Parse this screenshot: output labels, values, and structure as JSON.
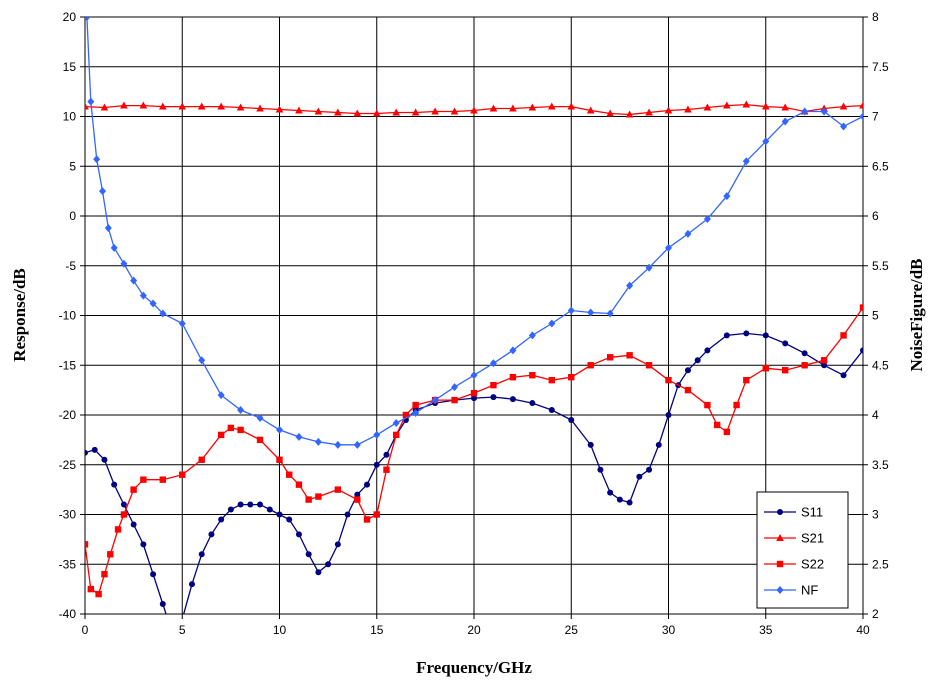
{
  "chart_data": {
    "type": "line",
    "xlabel": "Frequency/GHz",
    "ylabel_left": "Response/dB",
    "ylabel_right": "NoiseFigure/dB",
    "xlim": [
      0,
      40
    ],
    "ylim_left": [
      -40,
      20
    ],
    "ylim_right": [
      2,
      8
    ],
    "x_ticks": [
      "0",
      "5",
      "10",
      "15",
      "20",
      "25",
      "30",
      "35",
      "40"
    ],
    "y_ticks_left": [
      "-40",
      "-35",
      "-30",
      "-25",
      "-20",
      "-15",
      "-10",
      "-5",
      "0",
      "5",
      "10",
      "15",
      "20"
    ],
    "y_ticks_right": [
      "2",
      "2.5",
      "3",
      "3.5",
      "4",
      "4.5",
      "5",
      "5.5",
      "6",
      "6.5",
      "7",
      "7.5",
      "8"
    ],
    "grid": true,
    "legend_position": "bottom-right",
    "series": [
      {
        "name": "S11",
        "axis": "left",
        "color": "#000080",
        "marker": "circle",
        "points": [
          [
            0,
            -23.8
          ],
          [
            0.5,
            -23.5
          ],
          [
            1,
            -24.5
          ],
          [
            1.5,
            -27
          ],
          [
            2,
            -29
          ],
          [
            2.5,
            -31
          ],
          [
            3,
            -33
          ],
          [
            3.5,
            -36
          ],
          [
            4,
            -39
          ],
          [
            4.5,
            -42
          ],
          [
            5,
            -40.5
          ],
          [
            5.5,
            -37
          ],
          [
            6,
            -34
          ],
          [
            6.5,
            -32
          ],
          [
            7,
            -30.5
          ],
          [
            7.5,
            -29.5
          ],
          [
            8,
            -29
          ],
          [
            8.5,
            -29
          ],
          [
            9,
            -29
          ],
          [
            9.5,
            -29.5
          ],
          [
            10,
            -30
          ],
          [
            10.5,
            -30.5
          ],
          [
            11,
            -32
          ],
          [
            11.5,
            -34
          ],
          [
            12,
            -35.8
          ],
          [
            12.5,
            -35
          ],
          [
            13,
            -33
          ],
          [
            13.5,
            -30
          ],
          [
            14,
            -28
          ],
          [
            14.5,
            -27
          ],
          [
            15,
            -25
          ],
          [
            15.5,
            -24
          ],
          [
            16,
            -22
          ],
          [
            16.5,
            -20.5
          ],
          [
            17,
            -19.5
          ],
          [
            18,
            -18.8
          ],
          [
            19,
            -18.5
          ],
          [
            20,
            -18.3
          ],
          [
            21,
            -18.2
          ],
          [
            22,
            -18.4
          ],
          [
            23,
            -18.8
          ],
          [
            24,
            -19.5
          ],
          [
            25,
            -20.5
          ],
          [
            26,
            -23
          ],
          [
            26.5,
            -25.5
          ],
          [
            27,
            -27.8
          ],
          [
            27.5,
            -28.5
          ],
          [
            28,
            -28.8
          ],
          [
            28.5,
            -26.2
          ],
          [
            29,
            -25.5
          ],
          [
            29.5,
            -23
          ],
          [
            30,
            -20
          ],
          [
            30.5,
            -17
          ],
          [
            31,
            -15.5
          ],
          [
            31.5,
            -14.5
          ],
          [
            32,
            -13.5
          ],
          [
            33,
            -12
          ],
          [
            34,
            -11.8
          ],
          [
            35,
            -12
          ],
          [
            36,
            -12.8
          ],
          [
            37,
            -13.8
          ],
          [
            38,
            -15
          ],
          [
            39,
            -16
          ],
          [
            40,
            -13.5
          ]
        ]
      },
      {
        "name": "S21",
        "axis": "left",
        "color": "#ff0000",
        "marker": "triangle",
        "points": [
          [
            0,
            11
          ],
          [
            1,
            10.9
          ],
          [
            2,
            11.1
          ],
          [
            3,
            11.1
          ],
          [
            4,
            11
          ],
          [
            5,
            11
          ],
          [
            6,
            11
          ],
          [
            7,
            11
          ],
          [
            8,
            10.9
          ],
          [
            9,
            10.8
          ],
          [
            10,
            10.7
          ],
          [
            11,
            10.6
          ],
          [
            12,
            10.5
          ],
          [
            13,
            10.4
          ],
          [
            14,
            10.3
          ],
          [
            15,
            10.3
          ],
          [
            16,
            10.4
          ],
          [
            17,
            10.4
          ],
          [
            18,
            10.5
          ],
          [
            19,
            10.5
          ],
          [
            20,
            10.6
          ],
          [
            21,
            10.8
          ],
          [
            22,
            10.8
          ],
          [
            23,
            10.9
          ],
          [
            24,
            11
          ],
          [
            25,
            11
          ],
          [
            26,
            10.6
          ],
          [
            27,
            10.3
          ],
          [
            28,
            10.2
          ],
          [
            29,
            10.4
          ],
          [
            30,
            10.6
          ],
          [
            31,
            10.7
          ],
          [
            32,
            10.9
          ],
          [
            33,
            11.1
          ],
          [
            34,
            11.2
          ],
          [
            35,
            11
          ],
          [
            36,
            10.9
          ],
          [
            37,
            10.5
          ],
          [
            38,
            10.8
          ],
          [
            39,
            11
          ],
          [
            40,
            11.1
          ]
        ]
      },
      {
        "name": "S22",
        "axis": "left",
        "color": "#ff0000",
        "marker": "square",
        "points": [
          [
            0,
            -33
          ],
          [
            0.3,
            -37.5
          ],
          [
            0.7,
            -38
          ],
          [
            1,
            -36
          ],
          [
            1.3,
            -34
          ],
          [
            1.7,
            -31.5
          ],
          [
            2,
            -30
          ],
          [
            2.5,
            -27.5
          ],
          [
            3,
            -26.5
          ],
          [
            4,
            -26.5
          ],
          [
            5,
            -26
          ],
          [
            6,
            -24.5
          ],
          [
            7,
            -22
          ],
          [
            7.5,
            -21.3
          ],
          [
            8,
            -21.5
          ],
          [
            9,
            -22.5
          ],
          [
            10,
            -24.5
          ],
          [
            10.5,
            -26
          ],
          [
            11,
            -27
          ],
          [
            11.5,
            -28.5
          ],
          [
            12,
            -28.2
          ],
          [
            13,
            -27.5
          ],
          [
            14,
            -28.5
          ],
          [
            14.5,
            -30.5
          ],
          [
            15,
            -30
          ],
          [
            15.5,
            -25.5
          ],
          [
            16,
            -22
          ],
          [
            16.5,
            -20
          ],
          [
            17,
            -19
          ],
          [
            18,
            -18.5
          ],
          [
            19,
            -18.5
          ],
          [
            20,
            -17.8
          ],
          [
            21,
            -17
          ],
          [
            22,
            -16.2
          ],
          [
            23,
            -16
          ],
          [
            24,
            -16.5
          ],
          [
            25,
            -16.2
          ],
          [
            26,
            -15
          ],
          [
            27,
            -14.2
          ],
          [
            28,
            -14
          ],
          [
            29,
            -15
          ],
          [
            30,
            -16.5
          ],
          [
            31,
            -17.5
          ],
          [
            32,
            -19
          ],
          [
            32.5,
            -21
          ],
          [
            33,
            -21.7
          ],
          [
            33.5,
            -19
          ],
          [
            34,
            -16.5
          ],
          [
            35,
            -15.3
          ],
          [
            36,
            -15.5
          ],
          [
            37,
            -15
          ],
          [
            38,
            -14.5
          ],
          [
            39,
            -12
          ],
          [
            40,
            -9.2
          ]
        ]
      },
      {
        "name": "NF",
        "axis": "right",
        "color": "#3366ff",
        "marker": "diamond",
        "points": [
          [
            0.1,
            8.0
          ],
          [
            0.3,
            7.15
          ],
          [
            0.6,
            6.57
          ],
          [
            0.9,
            6.25
          ],
          [
            1.2,
            5.88
          ],
          [
            1.5,
            5.68
          ],
          [
            2,
            5.52
          ],
          [
            2.5,
            5.35
          ],
          [
            3,
            5.2
          ],
          [
            3.5,
            5.12
          ],
          [
            4,
            5.02
          ],
          [
            5,
            4.92
          ],
          [
            6,
            4.55
          ],
          [
            7,
            4.2
          ],
          [
            8,
            4.05
          ],
          [
            9,
            3.97
          ],
          [
            10,
            3.85
          ],
          [
            11,
            3.78
          ],
          [
            12,
            3.73
          ],
          [
            13,
            3.7
          ],
          [
            14,
            3.7
          ],
          [
            15,
            3.8
          ],
          [
            16,
            3.92
          ],
          [
            17,
            4.02
          ],
          [
            18,
            4.15
          ],
          [
            19,
            4.28
          ],
          [
            20,
            4.4
          ],
          [
            21,
            4.52
          ],
          [
            22,
            4.65
          ],
          [
            23,
            4.8
          ],
          [
            24,
            4.92
          ],
          [
            25,
            5.05
          ],
          [
            26,
            5.03
          ],
          [
            27,
            5.02
          ],
          [
            28,
            5.3
          ],
          [
            29,
            5.48
          ],
          [
            30,
            5.68
          ],
          [
            31,
            5.82
          ],
          [
            32,
            5.97
          ],
          [
            33,
            6.2
          ],
          [
            34,
            6.55
          ],
          [
            35,
            6.75
          ],
          [
            36,
            6.95
          ],
          [
            37,
            7.05
          ],
          [
            38,
            7.05
          ],
          [
            39,
            6.9
          ],
          [
            40,
            7.0
          ]
        ]
      }
    ]
  }
}
